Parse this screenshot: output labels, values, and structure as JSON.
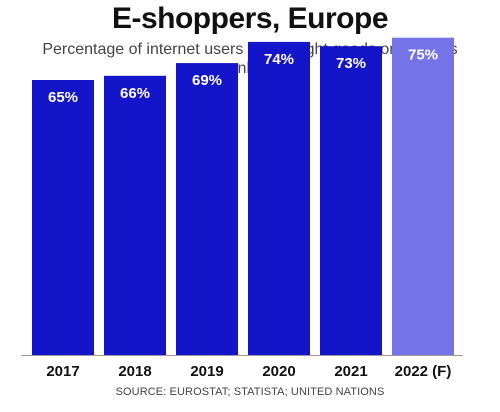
{
  "title": "E-shoppers, Europe",
  "subtitle": "Percentage of internet users that bought goods or services online",
  "source": "SOURCE: EUROSTAT; STATISTA; UNITED NATIONS",
  "colors": {
    "bar": "#1414c8",
    "forecast_bar": "#7474e8",
    "label": "#ffffff",
    "axis_text": "#111111"
  },
  "chart_data": {
    "type": "bar",
    "categories": [
      "2017",
      "2018",
      "2019",
      "2020",
      "2021",
      "2022 (F)"
    ],
    "values": [
      65,
      66,
      69,
      74,
      73,
      75
    ],
    "data_labels": [
      "65%",
      "66%",
      "69%",
      "74%",
      "73%",
      "75%"
    ],
    "forecast": [
      false,
      false,
      false,
      false,
      false,
      true
    ],
    "title": "E-shoppers, Europe",
    "subtitle": "Percentage of internet users that bought goods or services online",
    "xlabel": "",
    "ylabel": "",
    "ylim": [
      0,
      78
    ],
    "grid": false,
    "legend": "none"
  }
}
